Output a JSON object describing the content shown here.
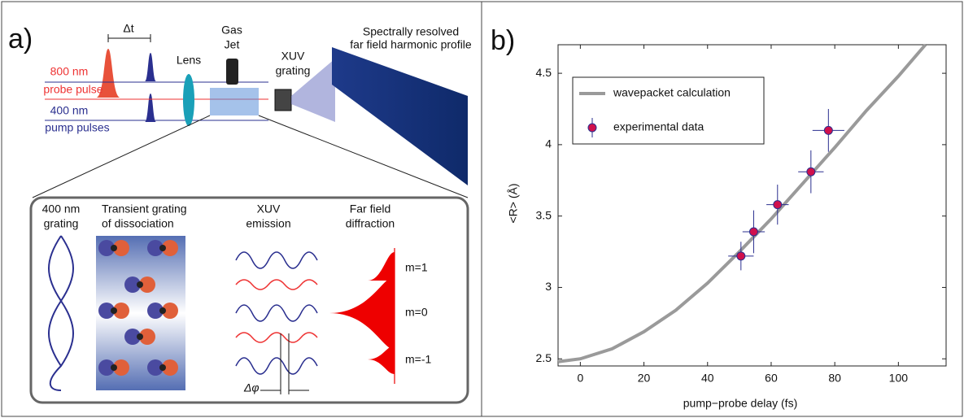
{
  "panel_a": {
    "label": "a)",
    "delay": "Δt",
    "probe": [
      "800 nm",
      "probe pulse"
    ],
    "pump": [
      "400 nm",
      "pump pulses"
    ],
    "lens": "Lens",
    "jet": [
      "Gas",
      "Jet"
    ],
    "grating": [
      "XUV",
      "grating"
    ],
    "profile": [
      "Spectrally resolved",
      "far field harmonic profile"
    ],
    "inset": {
      "col1": [
        "400 nm",
        "grating"
      ],
      "col2": [
        "Transient grating",
        "of dissociation"
      ],
      "col3": [
        "XUV",
        "emission"
      ],
      "col4": [
        "Far field",
        "diffraction"
      ],
      "orders": [
        "m=1",
        "m=0",
        "m=-1"
      ],
      "phase": "Δφ"
    }
  },
  "chart_data": {
    "type": "scatter",
    "label": "b)",
    "x_label": "pump−probe delay (fs)",
    "y_label": "<R> (Å)",
    "xlim": [
      -7,
      115
    ],
    "ylim": [
      2.45,
      4.7
    ],
    "xticks": [
      0,
      20,
      40,
      60,
      80,
      100
    ],
    "yticks": [
      2.5,
      3,
      3.5,
      4,
      4.5
    ],
    "legend": "upper-left",
    "series": [
      {
        "name": "wavepacket calculation",
        "type": "line",
        "color": "#9a9a9a",
        "x": [
          -7,
          0,
          10,
          20,
          30,
          40,
          50,
          60,
          70,
          80,
          90,
          100,
          108.5
        ],
        "values": [
          2.48,
          2.5,
          2.57,
          2.69,
          2.84,
          3.03,
          3.25,
          3.48,
          3.73,
          3.98,
          4.24,
          4.48,
          4.7
        ]
      },
      {
        "name": "experimental data",
        "type": "scatter",
        "color": "#d0104c",
        "x": [
          50.5,
          54.5,
          62,
          72.5,
          78
        ],
        "values": [
          3.22,
          3.39,
          3.58,
          3.81,
          4.1
        ],
        "xerr": [
          4,
          3.5,
          3.5,
          4,
          5
        ],
        "yerr": [
          0.1,
          0.15,
          0.14,
          0.15,
          0.15
        ]
      }
    ]
  }
}
